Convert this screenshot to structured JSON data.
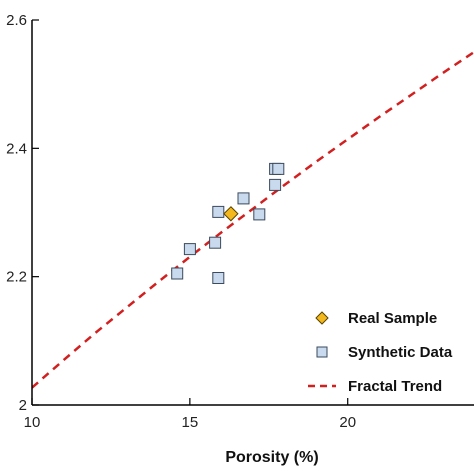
{
  "chart_data": {
    "type": "scatter",
    "title": "",
    "xlabel": "Porosity (%)",
    "ylabel": "",
    "xlim": [
      10,
      24
    ],
    "ylim": [
      2.0,
      2.6
    ],
    "x_ticks": [
      10,
      15,
      20
    ],
    "x_tick_labels": [
      "10",
      "15",
      "20"
    ],
    "y_ticks": [
      2.0,
      2.2,
      2.4,
      2.6
    ],
    "y_tick_labels": [
      "2",
      "2.2",
      "2.4",
      "2.6"
    ],
    "grid": false,
    "legend_position": "bottom-right",
    "series": [
      {
        "name": "Real Sample",
        "marker": "diamond",
        "color": "#f2b81d",
        "points": [
          [
            16.3,
            2.298
          ]
        ]
      },
      {
        "name": "Synthetic Data",
        "marker": "square",
        "color": "#c9d9ee",
        "points": [
          [
            14.6,
            2.205
          ],
          [
            15.0,
            2.243
          ],
          [
            15.8,
            2.253
          ],
          [
            15.9,
            2.198
          ],
          [
            15.9,
            2.301
          ],
          [
            16.7,
            2.322
          ],
          [
            17.2,
            2.297
          ],
          [
            17.7,
            2.343
          ],
          [
            17.7,
            2.368
          ],
          [
            17.8,
            2.368
          ]
        ]
      },
      {
        "name": "Fractal Trend",
        "style": "dashed-line",
        "color": "#d22020",
        "points": [
          [
            10,
            2.027
          ],
          [
            11,
            2.07
          ],
          [
            12,
            2.112
          ],
          [
            13,
            2.152
          ],
          [
            14,
            2.192
          ],
          [
            15,
            2.231
          ],
          [
            16,
            2.269
          ],
          [
            17,
            2.306
          ],
          [
            18,
            2.343
          ],
          [
            19,
            2.379
          ],
          [
            20,
            2.414
          ],
          [
            21,
            2.449
          ],
          [
            22,
            2.483
          ],
          [
            23,
            2.517
          ],
          [
            24,
            2.55
          ]
        ]
      }
    ]
  }
}
